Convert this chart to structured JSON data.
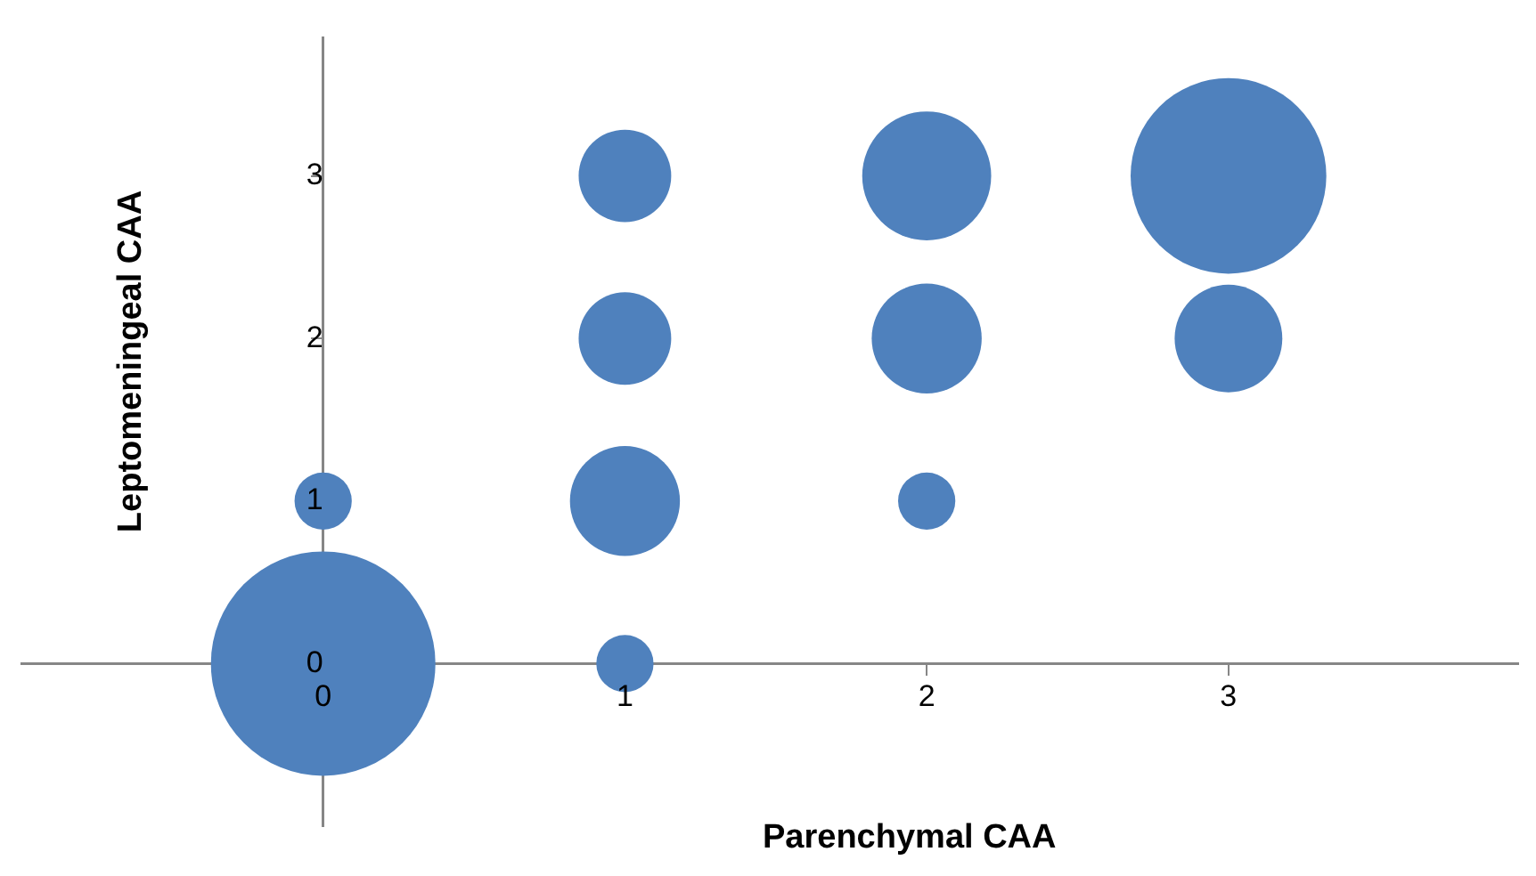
{
  "chart_data": {
    "type": "bubble",
    "relative": false,
    "xlabel": "Parenchymal CAA",
    "ylabel": "Leptomeningeal CAA",
    "x": [
      0,
      0,
      1,
      1,
      1,
      1,
      2,
      2,
      2,
      3,
      3
    ],
    "values": [
      0,
      1,
      0,
      1,
      2,
      3,
      1,
      2,
      3,
      2,
      3
    ],
    "sizes": [
      1,
      0.065,
      0.065,
      0.24,
      0.17,
      0.17,
      0.065,
      0.24,
      0.33,
      0.23,
      0.76
    ],
    "color": "#4f81bd",
    "xlim": [
      -1,
      3.96
    ],
    "ylim": [
      -1,
      3.85
    ],
    "xticks": [
      0,
      1,
      2,
      3
    ],
    "yticks": [
      0,
      1,
      2,
      3
    ],
    "grid": false,
    "legend": false
  }
}
